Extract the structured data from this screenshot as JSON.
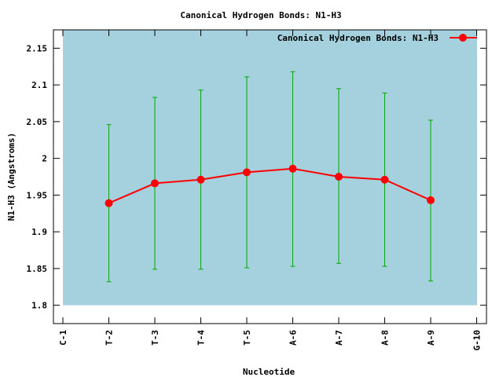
{
  "chart_data": {
    "type": "line",
    "title": "Canonical Hydrogen Bonds: N1-H3",
    "xlabel": "Nucleotide",
    "ylabel": "N1-H3 (Angstroms)",
    "categories": [
      "C-1",
      "T-2",
      "T-3",
      "T-4",
      "T-5",
      "A-6",
      "A-7",
      "A-8",
      "A-9",
      "G-10"
    ],
    "ylim": [
      1.775,
      2.175
    ],
    "yticks": [
      "1.8",
      "1.85",
      "1.9",
      "1.95",
      "2",
      "2.05",
      "2.1",
      "2.15"
    ],
    "grid": false,
    "legend_position": "top-right",
    "shaded_band": {
      "y_from": 1.8,
      "y_to": 2.175,
      "color": "#a5d0de"
    },
    "series": [
      {
        "name": "Canonical Hydrogen Bonds: N1-H3",
        "color": "#ff0000",
        "marker": "circle",
        "points": [
          {
            "x": "T-2",
            "y": 1.939
          },
          {
            "x": "T-3",
            "y": 1.966
          },
          {
            "x": "T-4",
            "y": 1.971
          },
          {
            "x": "T-5",
            "y": 1.981
          },
          {
            "x": "A-6",
            "y": 1.986
          },
          {
            "x": "A-7",
            "y": 1.975
          },
          {
            "x": "A-8",
            "y": 1.971
          },
          {
            "x": "A-9",
            "y": 1.943
          }
        ]
      }
    ],
    "error_bars": {
      "color": "#00aa00",
      "low": [
        1.832,
        1.849,
        1.849,
        1.851,
        1.853,
        1.857,
        1.853,
        1.833
      ],
      "high": [
        2.046,
        2.083,
        2.093,
        2.111,
        2.118,
        2.095,
        2.089,
        2.052
      ]
    }
  }
}
